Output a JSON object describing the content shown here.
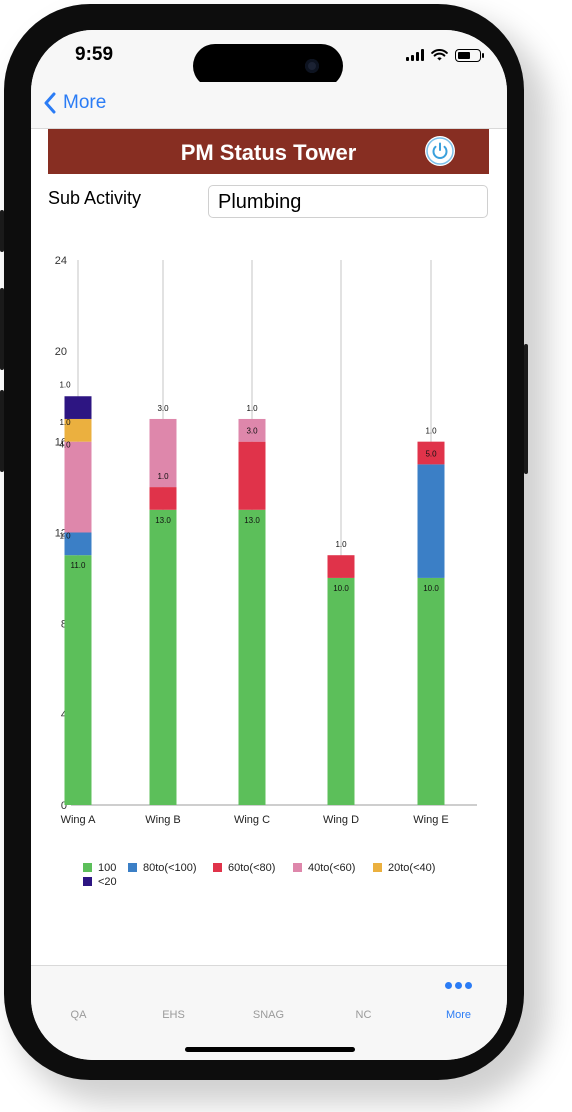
{
  "status": {
    "time": "9:59"
  },
  "nav": {
    "back_label": "More"
  },
  "header": {
    "title": "PM Status Tower"
  },
  "sub_activity": {
    "label": "Sub Activity",
    "value": "Plumbing"
  },
  "colors": {
    "header_bg": "#872e22",
    "accent": "#2b7cf5",
    "s100": "#5cbf5a",
    "s80": "#3b7fc6",
    "s60": "#e0334a",
    "s40": "#de87ab",
    "s20": "#ebb03f",
    "s0": "#2d1582"
  },
  "chart_data": {
    "type": "bar",
    "stacked": true,
    "categories": [
      "Wing A",
      "Wing B",
      "Wing C",
      "Wing D",
      "Wing E"
    ],
    "y_ticks": [
      "0",
      "4",
      "8",
      "12",
      "16",
      "20",
      "24"
    ],
    "ylim": [
      0,
      24
    ],
    "grid": false,
    "legend_position": "bottom",
    "series": [
      {
        "name": "100",
        "color": "#5cbf5a",
        "values": [
          11,
          13,
          13,
          10,
          10
        ],
        "labels": [
          "11.0",
          "13.0",
          "13.0",
          "10.0",
          "10.0"
        ]
      },
      {
        "name": "80to(<100)",
        "color": "#3b7fc6",
        "values": [
          1,
          0,
          0,
          0,
          5
        ],
        "labels": [
          "1.0",
          "",
          "",
          "",
          "5.0"
        ]
      },
      {
        "name": "60to(<80)",
        "color": "#e0334a",
        "values": [
          0,
          1,
          3,
          1,
          1
        ],
        "labels": [
          "",
          "1.0",
          "3.0",
          "1.0",
          "1.0"
        ]
      },
      {
        "name": "40to(<60)",
        "color": "#de87ab",
        "values": [
          4,
          3,
          1,
          0,
          0
        ],
        "labels": [
          "4.0",
          "3.0",
          "1.0",
          "",
          ""
        ]
      },
      {
        "name": "20to(<40)",
        "color": "#ebb03f",
        "values": [
          1,
          0,
          0,
          0,
          0
        ],
        "labels": [
          "1.0",
          "",
          "",
          "",
          ""
        ]
      },
      {
        "name": "<20",
        "color": "#2d1582",
        "values": [
          1,
          0,
          0,
          0,
          0
        ],
        "labels": [
          "1.0",
          "",
          "",
          "",
          ""
        ]
      }
    ]
  },
  "tabs": [
    {
      "label": "QA",
      "active": false
    },
    {
      "label": "EHS",
      "active": false
    },
    {
      "label": "SNAG",
      "active": false
    },
    {
      "label": "NC",
      "active": false
    },
    {
      "label": "More",
      "active": true
    }
  ]
}
